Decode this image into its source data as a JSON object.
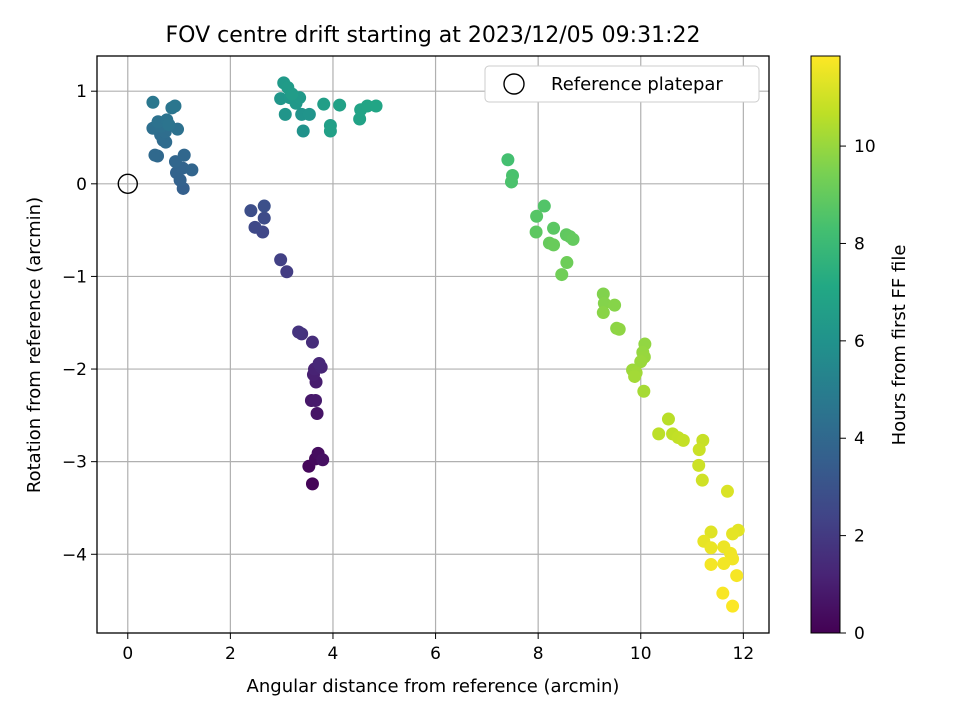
{
  "chart_data": {
    "type": "scatter",
    "title": "FOV centre drift starting at 2023/12/05 09:31:22",
    "xlabel": "Angular distance from reference (arcmin)",
    "ylabel": "Rotation from reference (arcmin)",
    "xlim": [
      -0.6,
      12.5
    ],
    "ylim": [
      -4.85,
      1.38
    ],
    "xticks": [
      0,
      2,
      4,
      6,
      8,
      10,
      12
    ],
    "yticks": [
      -4,
      -3,
      -2,
      -1,
      0,
      1
    ],
    "xtick_labels": [
      "0",
      "2",
      "4",
      "6",
      "8",
      "10",
      "12"
    ],
    "ytick_labels": [
      "−4",
      "−3",
      "−2",
      "−1",
      "0",
      "1"
    ],
    "grid": true,
    "legend": {
      "placement": "top-right",
      "entries": [
        {
          "label": "Reference platepar",
          "marker": "open-circle"
        }
      ]
    },
    "reference_point": {
      "x": 0,
      "y": 0
    },
    "colorbar": {
      "label": "Hours from first FF file",
      "colormap": "viridis",
      "range": [
        0,
        11.85
      ],
      "ticks": [
        0,
        2,
        4,
        6,
        8,
        10
      ],
      "tick_labels": [
        "0",
        "2",
        "4",
        "6",
        "8",
        "10"
      ]
    },
    "points": [
      {
        "x": 3.6,
        "y": -3.24,
        "t": 0.1
      },
      {
        "x": 3.53,
        "y": -3.05,
        "t": 0.2
      },
      {
        "x": 3.66,
        "y": -2.97,
        "t": 0.3
      },
      {
        "x": 3.71,
        "y": -2.91,
        "t": 0.4
      },
      {
        "x": 3.8,
        "y": -2.98,
        "t": 0.5
      },
      {
        "x": 3.69,
        "y": -2.48,
        "t": 0.65
      },
      {
        "x": 3.58,
        "y": -2.34,
        "t": 0.75
      },
      {
        "x": 3.66,
        "y": -2.34,
        "t": 0.85
      },
      {
        "x": 3.67,
        "y": -2.14,
        "t": 0.95
      },
      {
        "x": 3.62,
        "y": -2.06,
        "t": 1.05
      },
      {
        "x": 3.64,
        "y": -2.0,
        "t": 1.15
      },
      {
        "x": 3.77,
        "y": -1.98,
        "t": 1.25
      },
      {
        "x": 3.73,
        "y": -1.94,
        "t": 1.35
      },
      {
        "x": 3.6,
        "y": -1.71,
        "t": 1.5
      },
      {
        "x": 3.39,
        "y": -1.62,
        "t": 1.65
      },
      {
        "x": 3.33,
        "y": -1.6,
        "t": 1.75
      },
      {
        "x": 3.1,
        "y": -0.95,
        "t": 2.1
      },
      {
        "x": 2.98,
        "y": -0.82,
        "t": 2.25
      },
      {
        "x": 2.63,
        "y": -0.52,
        "t": 2.5
      },
      {
        "x": 2.48,
        "y": -0.47,
        "t": 2.6
      },
      {
        "x": 2.66,
        "y": -0.37,
        "t": 2.7
      },
      {
        "x": 2.4,
        "y": -0.29,
        "t": 2.8
      },
      {
        "x": 2.66,
        "y": -0.24,
        "t": 2.9
      },
      {
        "x": 1.08,
        "y": -0.05,
        "t": 3.6
      },
      {
        "x": 1.02,
        "y": 0.04,
        "t": 3.7
      },
      {
        "x": 0.95,
        "y": 0.12,
        "t": 3.75
      },
      {
        "x": 1.07,
        "y": 0.17,
        "t": 3.8
      },
      {
        "x": 1.25,
        "y": 0.15,
        "t": 3.85
      },
      {
        "x": 0.93,
        "y": 0.24,
        "t": 3.9
      },
      {
        "x": 1.1,
        "y": 0.31,
        "t": 3.95
      },
      {
        "x": 0.58,
        "y": 0.3,
        "t": 4.0
      },
      {
        "x": 0.53,
        "y": 0.31,
        "t": 4.05
      },
      {
        "x": 0.69,
        "y": 0.47,
        "t": 4.1
      },
      {
        "x": 0.74,
        "y": 0.45,
        "t": 4.15
      },
      {
        "x": 0.64,
        "y": 0.53,
        "t": 4.2
      },
      {
        "x": 0.73,
        "y": 0.56,
        "t": 4.25
      },
      {
        "x": 0.49,
        "y": 0.6,
        "t": 4.3
      },
      {
        "x": 0.65,
        "y": 0.62,
        "t": 4.35
      },
      {
        "x": 0.97,
        "y": 0.59,
        "t": 4.4
      },
      {
        "x": 0.59,
        "y": 0.67,
        "t": 4.45
      },
      {
        "x": 0.76,
        "y": 0.69,
        "t": 4.5
      },
      {
        "x": 0.8,
        "y": 0.64,
        "t": 4.55
      },
      {
        "x": 0.86,
        "y": 0.82,
        "t": 4.6
      },
      {
        "x": 0.92,
        "y": 0.84,
        "t": 4.65
      },
      {
        "x": 0.49,
        "y": 0.88,
        "t": 4.7
      },
      {
        "x": 3.42,
        "y": 0.57,
        "t": 6.0
      },
      {
        "x": 3.39,
        "y": 0.75,
        "t": 6.05
      },
      {
        "x": 3.54,
        "y": 0.75,
        "t": 6.1
      },
      {
        "x": 3.07,
        "y": 0.75,
        "t": 6.15
      },
      {
        "x": 2.98,
        "y": 0.92,
        "t": 6.2
      },
      {
        "x": 3.16,
        "y": 0.93,
        "t": 6.25
      },
      {
        "x": 3.28,
        "y": 0.87,
        "t": 6.3
      },
      {
        "x": 3.35,
        "y": 0.93,
        "t": 6.35
      },
      {
        "x": 3.04,
        "y": 1.09,
        "t": 6.4
      },
      {
        "x": 3.12,
        "y": 1.04,
        "t": 6.45
      },
      {
        "x": 3.2,
        "y": 0.97,
        "t": 6.5
      },
      {
        "x": 3.82,
        "y": 0.86,
        "t": 6.6
      },
      {
        "x": 3.95,
        "y": 0.63,
        "t": 6.65
      },
      {
        "x": 3.95,
        "y": 0.57,
        "t": 6.7
      },
      {
        "x": 4.13,
        "y": 0.85,
        "t": 6.75
      },
      {
        "x": 4.52,
        "y": 0.7,
        "t": 6.8
      },
      {
        "x": 4.54,
        "y": 0.8,
        "t": 6.85
      },
      {
        "x": 4.67,
        "y": 0.84,
        "t": 6.9
      },
      {
        "x": 4.84,
        "y": 0.84,
        "t": 6.95
      },
      {
        "x": 7.41,
        "y": 0.26,
        "t": 8.3
      },
      {
        "x": 7.5,
        "y": 0.09,
        "t": 8.4
      },
      {
        "x": 7.48,
        "y": 0.02,
        "t": 8.45
      },
      {
        "x": 8.12,
        "y": -0.24,
        "t": 8.6
      },
      {
        "x": 7.97,
        "y": -0.35,
        "t": 8.7
      },
      {
        "x": 8.3,
        "y": -0.48,
        "t": 8.8
      },
      {
        "x": 7.96,
        "y": -0.52,
        "t": 8.85
      },
      {
        "x": 8.55,
        "y": -0.55,
        "t": 8.9
      },
      {
        "x": 8.62,
        "y": -0.57,
        "t": 8.95
      },
      {
        "x": 8.68,
        "y": -0.6,
        "t": 9.0
      },
      {
        "x": 8.22,
        "y": -0.64,
        "t": 9.05
      },
      {
        "x": 8.3,
        "y": -0.66,
        "t": 9.1
      },
      {
        "x": 8.56,
        "y": -0.85,
        "t": 9.2
      },
      {
        "x": 8.46,
        "y": -0.98,
        "t": 9.25
      },
      {
        "x": 9.27,
        "y": -1.19,
        "t": 9.6
      },
      {
        "x": 9.29,
        "y": -1.29,
        "t": 9.65
      },
      {
        "x": 9.49,
        "y": -1.31,
        "t": 9.7
      },
      {
        "x": 9.27,
        "y": -1.39,
        "t": 9.75
      },
      {
        "x": 9.53,
        "y": -1.56,
        "t": 9.8
      },
      {
        "x": 9.58,
        "y": -1.57,
        "t": 9.85
      },
      {
        "x": 10.08,
        "y": -1.73,
        "t": 9.9
      },
      {
        "x": 10.04,
        "y": -1.82,
        "t": 9.95
      },
      {
        "x": 10.07,
        "y": -1.87,
        "t": 10.0
      },
      {
        "x": 10.0,
        "y": -1.92,
        "t": 10.05
      },
      {
        "x": 9.84,
        "y": -2.01,
        "t": 10.1
      },
      {
        "x": 9.91,
        "y": -2.04,
        "t": 10.15
      },
      {
        "x": 9.88,
        "y": -2.08,
        "t": 10.2
      },
      {
        "x": 10.06,
        "y": -2.24,
        "t": 10.25
      },
      {
        "x": 10.54,
        "y": -2.54,
        "t": 10.6
      },
      {
        "x": 10.35,
        "y": -2.7,
        "t": 10.65
      },
      {
        "x": 10.62,
        "y": -2.7,
        "t": 10.7
      },
      {
        "x": 10.73,
        "y": -2.74,
        "t": 10.75
      },
      {
        "x": 10.83,
        "y": -2.77,
        "t": 10.8
      },
      {
        "x": 11.21,
        "y": -2.77,
        "t": 10.85
      },
      {
        "x": 11.14,
        "y": -2.87,
        "t": 10.9
      },
      {
        "x": 11.13,
        "y": -3.04,
        "t": 10.95
      },
      {
        "x": 11.2,
        "y": -3.2,
        "t": 11.0
      },
      {
        "x": 11.69,
        "y": -3.32,
        "t": 11.2
      },
      {
        "x": 11.37,
        "y": -3.76,
        "t": 11.3
      },
      {
        "x": 11.9,
        "y": -3.74,
        "t": 11.35
      },
      {
        "x": 11.79,
        "y": -3.78,
        "t": 11.4
      },
      {
        "x": 11.23,
        "y": -3.86,
        "t": 11.45
      },
      {
        "x": 11.37,
        "y": -3.93,
        "t": 11.5
      },
      {
        "x": 11.62,
        "y": -3.92,
        "t": 11.55
      },
      {
        "x": 11.75,
        "y": -3.99,
        "t": 11.6
      },
      {
        "x": 11.79,
        "y": -4.05,
        "t": 11.62
      },
      {
        "x": 11.62,
        "y": -4.1,
        "t": 11.65
      },
      {
        "x": 11.37,
        "y": -4.11,
        "t": 11.68
      },
      {
        "x": 11.87,
        "y": -4.23,
        "t": 11.72
      },
      {
        "x": 11.6,
        "y": -4.42,
        "t": 11.76
      },
      {
        "x": 11.79,
        "y": -4.56,
        "t": 11.82
      }
    ]
  }
}
